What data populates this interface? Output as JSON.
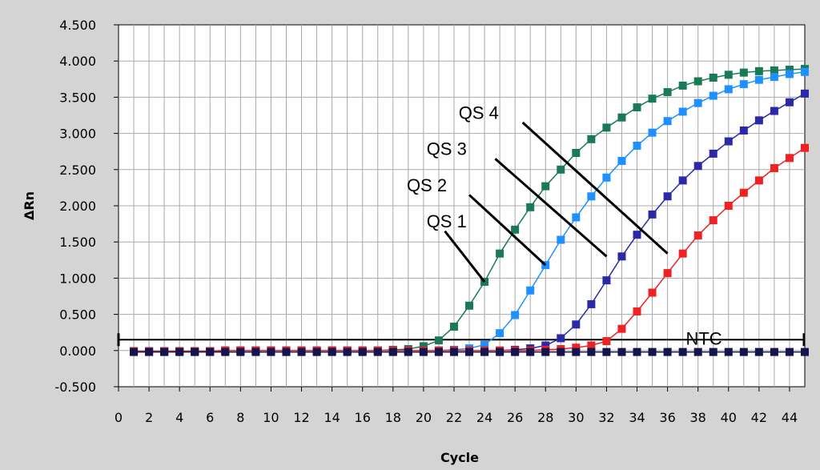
{
  "chart_data": {
    "type": "line",
    "xlabel": "Cycle",
    "ylabel": "ΔRn",
    "xlim": [
      0,
      45
    ],
    "ylim": [
      -0.5,
      4.5
    ],
    "grid": true,
    "x_ticks": [
      0,
      2,
      4,
      6,
      8,
      10,
      12,
      14,
      16,
      18,
      20,
      22,
      24,
      26,
      28,
      30,
      32,
      34,
      36,
      38,
      40,
      42,
      44
    ],
    "x_tick_labels": [
      "0",
      "2",
      "4",
      "6",
      "8",
      "10",
      "12",
      "14",
      "16",
      "18",
      "20",
      "22",
      "24",
      "26",
      "28",
      "30",
      "32",
      "34",
      "36",
      "38",
      "40",
      "42",
      "44"
    ],
    "y_ticks": [
      -0.5,
      0,
      0.5,
      1,
      1.5,
      2,
      2.5,
      3,
      3.5,
      4,
      4.5
    ],
    "y_tick_labels": [
      "-0.500",
      "0.000",
      "0.500",
      "1.000",
      "1.500",
      "2.000",
      "2.500",
      "3.000",
      "3.500",
      "4.000",
      "4.500"
    ],
    "threshold": 0.15,
    "series": [
      {
        "name": "QS 1",
        "color": "#1a7a55",
        "x": [
          1,
          2,
          3,
          4,
          5,
          6,
          7,
          8,
          9,
          10,
          11,
          12,
          13,
          14,
          15,
          16,
          17,
          18,
          19,
          20,
          21,
          22,
          23,
          24,
          25,
          26,
          27,
          28,
          29,
          30,
          31,
          32,
          33,
          34,
          35,
          36,
          37,
          38,
          39,
          40,
          41,
          42,
          43,
          44,
          45
        ],
        "y": [
          -0.01,
          -0.01,
          -0.01,
          -0.01,
          -0.01,
          -0.01,
          0,
          0,
          0,
          0,
          0,
          0,
          0,
          0,
          0,
          0,
          0,
          0.01,
          0.02,
          0.06,
          0.14,
          0.33,
          0.62,
          0.95,
          1.34,
          1.67,
          1.98,
          2.27,
          2.5,
          2.73,
          2.92,
          3.08,
          3.22,
          3.36,
          3.48,
          3.57,
          3.66,
          3.72,
          3.77,
          3.81,
          3.84,
          3.86,
          3.87,
          3.88,
          3.89
        ]
      },
      {
        "name": "QS 2",
        "color": "#1e90ff",
        "x": [
          1,
          2,
          3,
          4,
          5,
          6,
          7,
          8,
          9,
          10,
          11,
          12,
          13,
          14,
          15,
          16,
          17,
          18,
          19,
          20,
          21,
          22,
          23,
          24,
          25,
          26,
          27,
          28,
          29,
          30,
          31,
          32,
          33,
          34,
          35,
          36,
          37,
          38,
          39,
          40,
          41,
          42,
          43,
          44,
          45
        ],
        "y": [
          -0.01,
          -0.01,
          -0.01,
          -0.01,
          -0.01,
          -0.01,
          0,
          0,
          0,
          0,
          0,
          0,
          0,
          0,
          0,
          0,
          0,
          0,
          0,
          0,
          0,
          0.01,
          0.03,
          0.08,
          0.24,
          0.49,
          0.83,
          1.18,
          1.53,
          1.84,
          2.13,
          2.39,
          2.62,
          2.83,
          3.01,
          3.17,
          3.3,
          3.42,
          3.52,
          3.61,
          3.68,
          3.74,
          3.78,
          3.82,
          3.85
        ]
      },
      {
        "name": "QS 3",
        "color": "#2a2aa8",
        "x": [
          1,
          2,
          3,
          4,
          5,
          6,
          7,
          8,
          9,
          10,
          11,
          12,
          13,
          14,
          15,
          16,
          17,
          18,
          19,
          20,
          21,
          22,
          23,
          24,
          25,
          26,
          27,
          28,
          29,
          30,
          31,
          32,
          33,
          34,
          35,
          36,
          37,
          38,
          39,
          40,
          41,
          42,
          43,
          44,
          45
        ],
        "y": [
          -0.01,
          -0.01,
          -0.01,
          -0.01,
          -0.01,
          -0.01,
          0,
          0,
          0,
          0,
          0,
          0,
          0,
          0,
          0,
          0,
          0,
          0,
          0,
          0,
          0,
          0,
          0,
          0,
          0,
          0.01,
          0.03,
          0.07,
          0.17,
          0.36,
          0.64,
          0.97,
          1.3,
          1.6,
          1.88,
          2.13,
          2.35,
          2.55,
          2.72,
          2.89,
          3.04,
          3.18,
          3.31,
          3.43,
          3.55
        ]
      },
      {
        "name": "QS 4",
        "color": "#ee2222",
        "x": [
          1,
          2,
          3,
          4,
          5,
          6,
          7,
          8,
          9,
          10,
          11,
          12,
          13,
          14,
          15,
          16,
          17,
          18,
          19,
          20,
          21,
          22,
          23,
          24,
          25,
          26,
          27,
          28,
          29,
          30,
          31,
          32,
          33,
          34,
          35,
          36,
          37,
          38,
          39,
          40,
          41,
          42,
          43,
          44,
          45
        ],
        "y": [
          -0.01,
          -0.01,
          -0.01,
          -0.01,
          -0.01,
          -0.01,
          0,
          0,
          0,
          0,
          0,
          0,
          0,
          0,
          0,
          0,
          0,
          0,
          0,
          0,
          0,
          0,
          0,
          0,
          0,
          0,
          0,
          0.01,
          0.02,
          0.04,
          0.07,
          0.13,
          0.3,
          0.54,
          0.8,
          1.07,
          1.34,
          1.59,
          1.8,
          2,
          2.18,
          2.35,
          2.52,
          2.66,
          2.8
        ]
      },
      {
        "name": "NTC",
        "color": "#15154d",
        "x": [
          1,
          2,
          3,
          4,
          5,
          6,
          7,
          8,
          9,
          10,
          11,
          12,
          13,
          14,
          15,
          16,
          17,
          18,
          19,
          20,
          21,
          22,
          23,
          24,
          25,
          26,
          27,
          28,
          29,
          30,
          31,
          32,
          33,
          34,
          35,
          36,
          37,
          38,
          39,
          40,
          41,
          42,
          43,
          44,
          45
        ],
        "y": [
          -0.02,
          -0.02,
          -0.02,
          -0.02,
          -0.02,
          -0.02,
          -0.02,
          -0.02,
          -0.02,
          -0.02,
          -0.02,
          -0.02,
          -0.02,
          -0.02,
          -0.02,
          -0.02,
          -0.02,
          -0.02,
          -0.02,
          -0.02,
          -0.02,
          -0.02,
          -0.02,
          -0.02,
          -0.02,
          -0.02,
          -0.02,
          -0.02,
          -0.02,
          -0.02,
          -0.02,
          -0.02,
          -0.02,
          -0.02,
          -0.02,
          -0.02,
          -0.02,
          -0.02,
          -0.02,
          -0.02,
          -0.02,
          -0.02,
          -0.02,
          -0.02,
          -0.02
        ]
      }
    ],
    "annotations": [
      {
        "label": "QS 1",
        "text_x": 20.2,
        "text_y": 1.7,
        "line_from": [
          21.4,
          1.65
        ],
        "line_to": [
          24,
          0.95
        ]
      },
      {
        "label": "QS 2",
        "text_x": 18.9,
        "text_y": 2.2,
        "line_from": [
          23.0,
          2.15
        ],
        "line_to": [
          28,
          1.18
        ]
      },
      {
        "label": "QS 3",
        "text_x": 20.2,
        "text_y": 2.7,
        "line_from": [
          24.7,
          2.65
        ],
        "line_to": [
          32,
          1.3
        ]
      },
      {
        "label": "QS 4",
        "text_x": 22.3,
        "text_y": 3.2,
        "line_from": [
          26.5,
          3.15
        ],
        "line_to": [
          36,
          1.34
        ]
      },
      {
        "label": "NTC",
        "text_x": 37.2,
        "text_y": 0.08
      }
    ]
  }
}
